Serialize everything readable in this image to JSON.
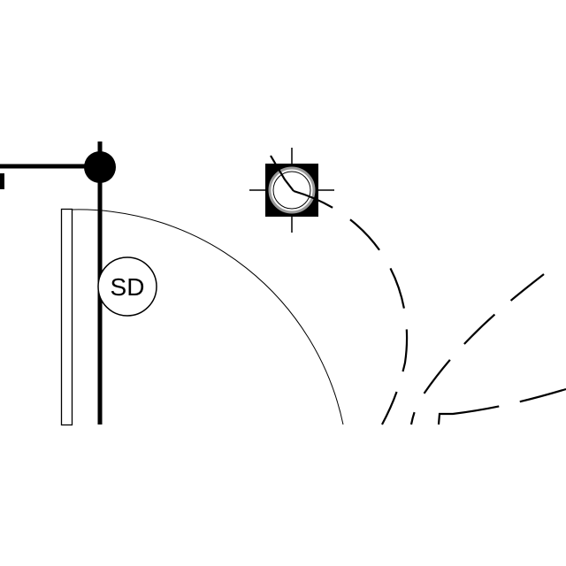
{
  "diagram": {
    "symbols": [
      {
        "name": "smoke-detector",
        "label": "SD"
      },
      {
        "name": "ceiling-light-fixture"
      },
      {
        "name": "wall-junction-node"
      },
      {
        "name": "door-swing-arc"
      },
      {
        "name": "door-leaf-panel"
      },
      {
        "name": "switch-leg-wiring"
      }
    ],
    "colors": {
      "ink": "#000000",
      "paper": "#ffffff"
    }
  }
}
